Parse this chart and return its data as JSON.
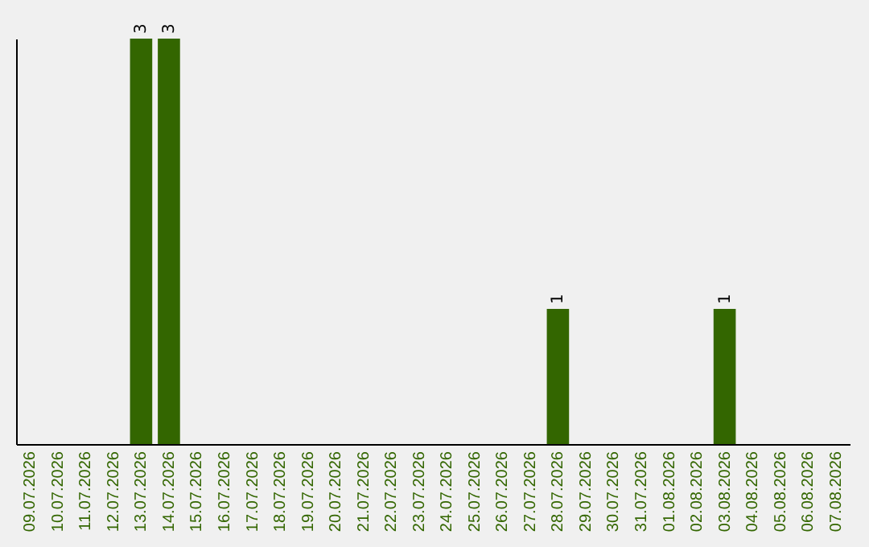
{
  "chart_data": {
    "type": "bar",
    "categories": [
      "09.07.2026",
      "10.07.2026",
      "11.07.2026",
      "12.07.2026",
      "13.07.2026",
      "14.07.2026",
      "15.07.2026",
      "16.07.2026",
      "17.07.2026",
      "18.07.2026",
      "19.07.2026",
      "20.07.2026",
      "21.07.2026",
      "22.07.2026",
      "23.07.2026",
      "24.07.2026",
      "25.07.2026",
      "26.07.2026",
      "27.07.2026",
      "28.07.2026",
      "29.07.2026",
      "30.07.2026",
      "31.07.2026",
      "01.08.2026",
      "02.08.2026",
      "03.08.2026",
      "04.08.2026",
      "05.08.2026",
      "06.08.2026",
      "07.08.2026"
    ],
    "values": [
      0,
      0,
      0,
      0,
      3,
      3,
      0,
      0,
      0,
      0,
      0,
      0,
      0,
      0,
      0,
      0,
      0,
      0,
      0,
      1,
      0,
      0,
      0,
      0,
      0,
      1,
      0,
      0,
      0,
      0
    ],
    "value_labels": [
      null,
      null,
      null,
      null,
      "3",
      "3",
      null,
      null,
      null,
      null,
      null,
      null,
      null,
      null,
      null,
      null,
      null,
      null,
      null,
      "1",
      null,
      null,
      null,
      null,
      null,
      "1",
      null,
      null,
      null,
      null
    ],
    "color": "#336600",
    "tick_labels": "x",
    "grid": false
  }
}
